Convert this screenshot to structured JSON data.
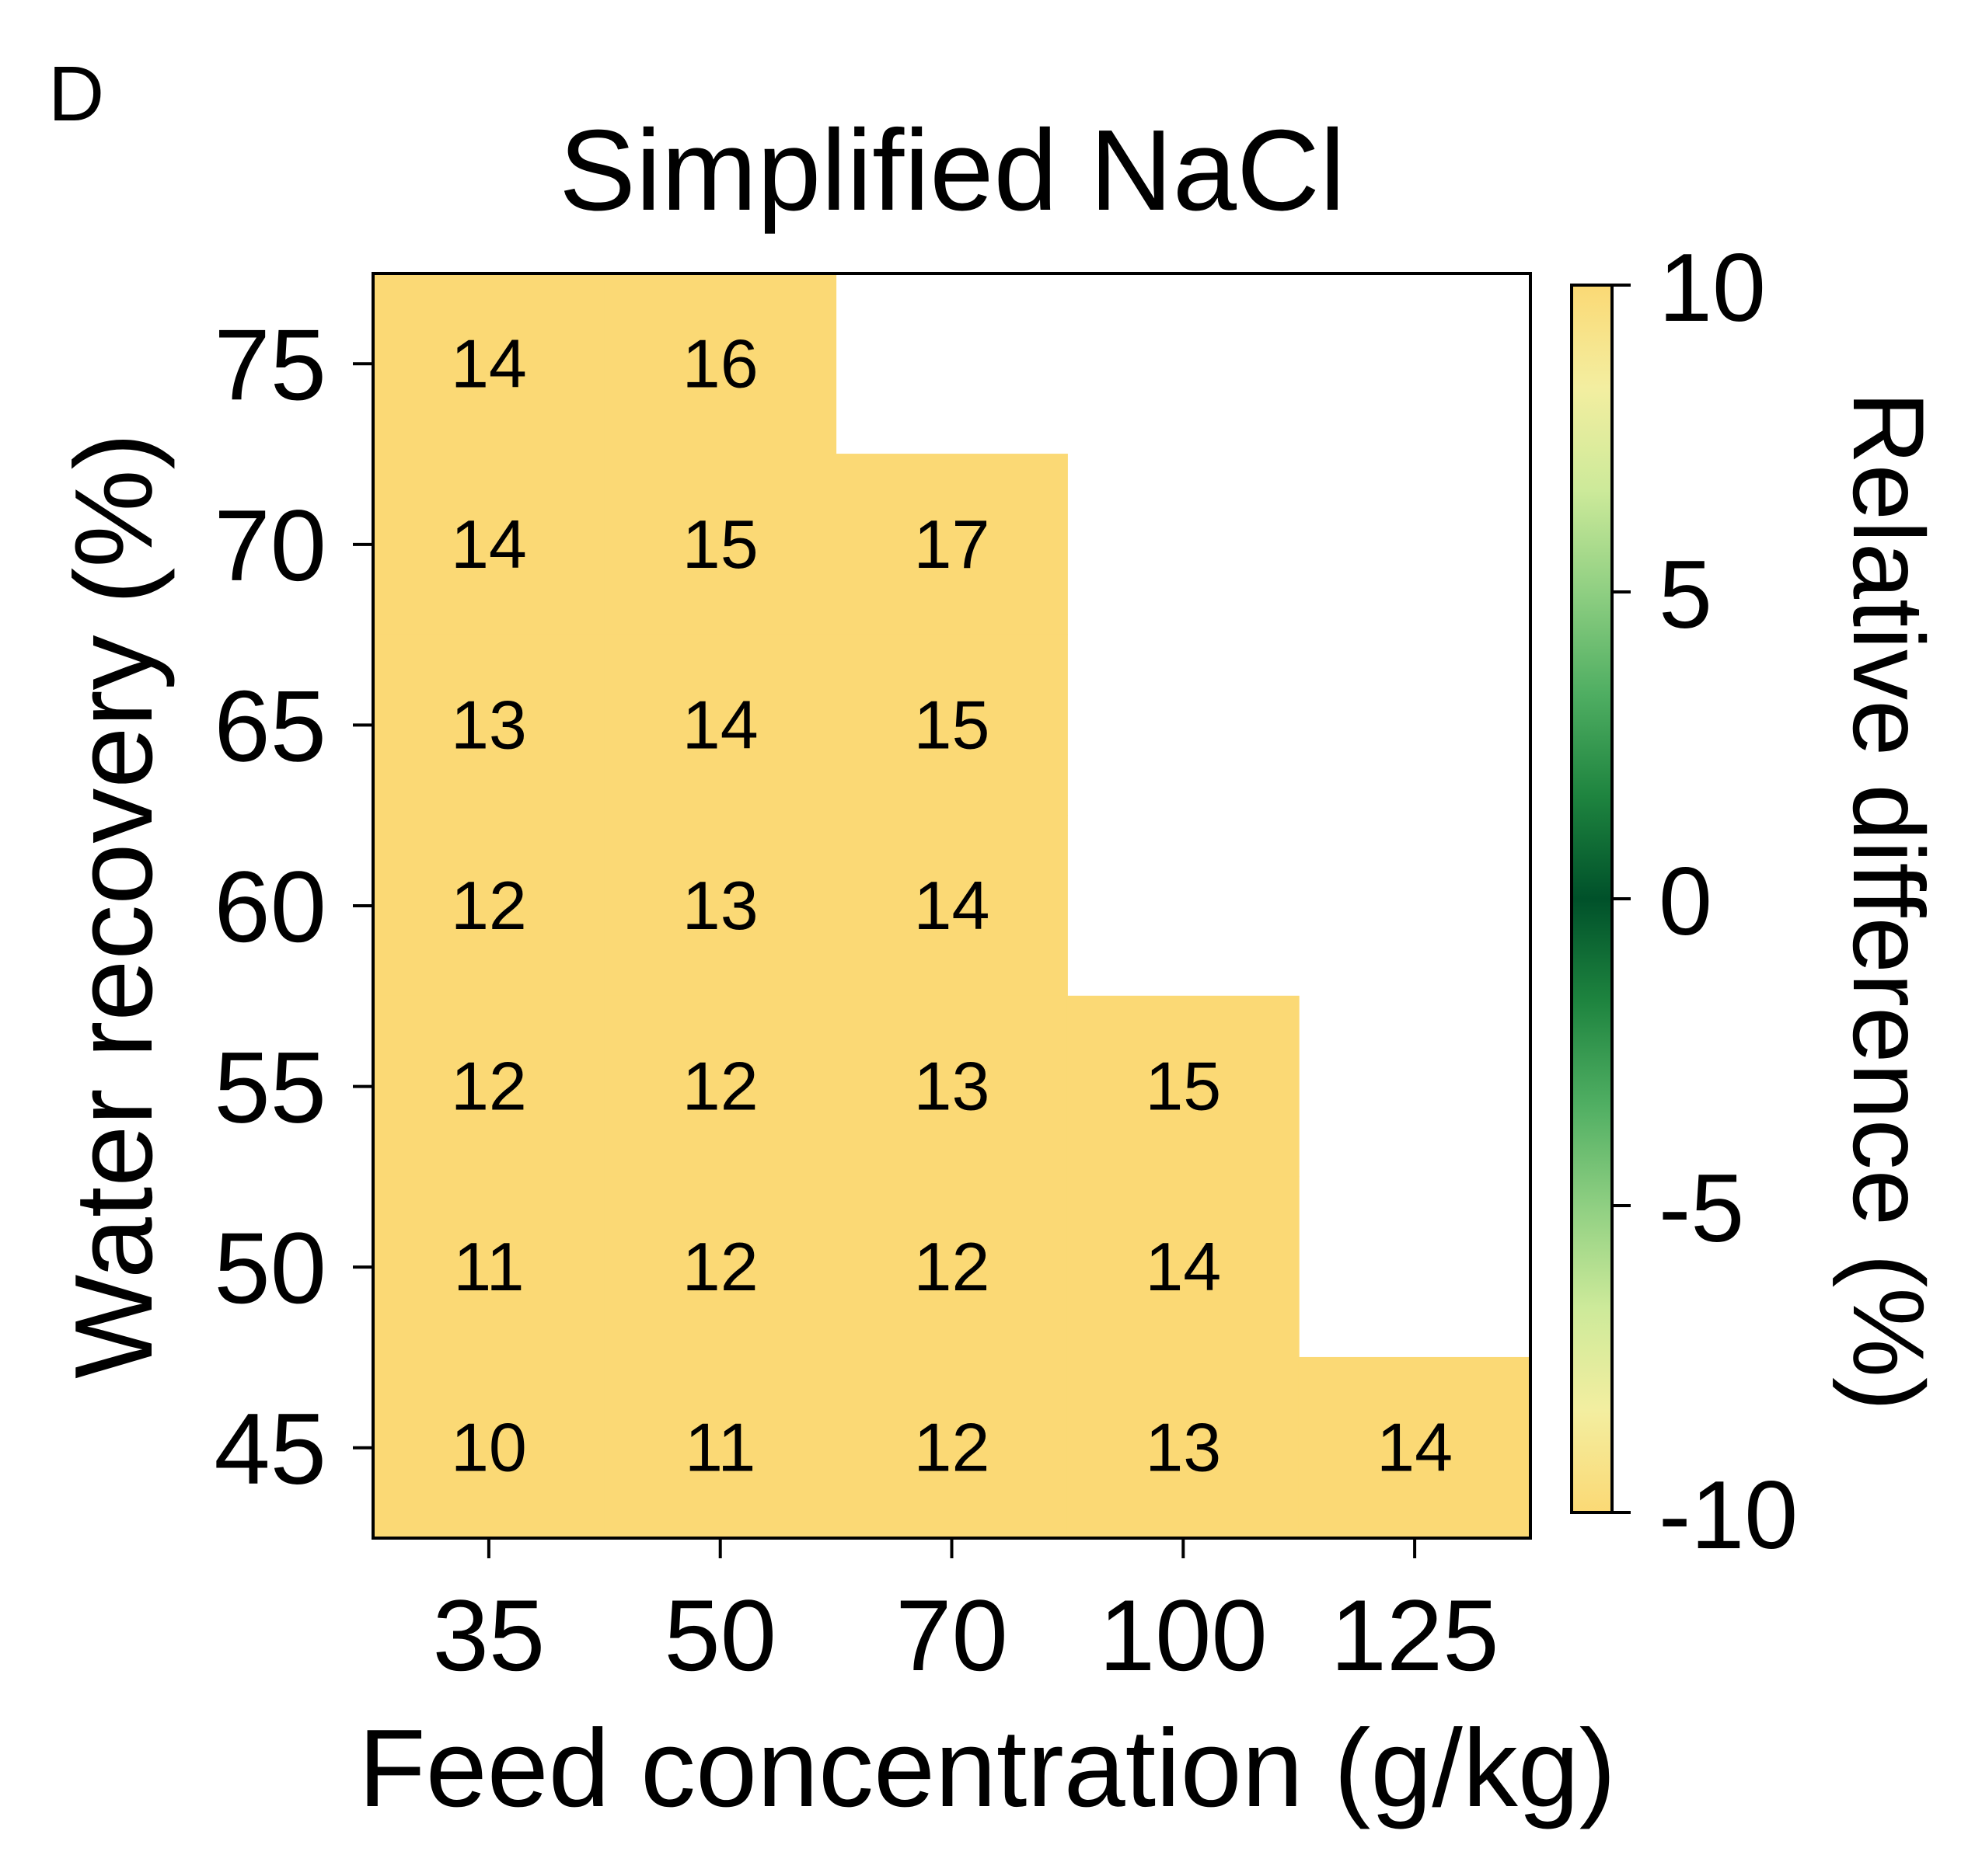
{
  "panel_label": "D",
  "chart_data": {
    "type": "heatmap",
    "title": "Simplified NaCl",
    "xlabel": "Feed concentration (g/kg)",
    "ylabel": "Water recovery (%)",
    "x_categories": [
      "35",
      "50",
      "70",
      "100",
      "125"
    ],
    "y_categories": [
      "45",
      "50",
      "55",
      "60",
      "65",
      "70",
      "75"
    ],
    "cells": [
      {
        "x": "35",
        "y": "75",
        "value": 14
      },
      {
        "x": "50",
        "y": "75",
        "value": 16
      },
      {
        "x": "35",
        "y": "70",
        "value": 14
      },
      {
        "x": "50",
        "y": "70",
        "value": 15
      },
      {
        "x": "70",
        "y": "70",
        "value": 17
      },
      {
        "x": "35",
        "y": "65",
        "value": 13
      },
      {
        "x": "50",
        "y": "65",
        "value": 14
      },
      {
        "x": "70",
        "y": "65",
        "value": 15
      },
      {
        "x": "35",
        "y": "60",
        "value": 12
      },
      {
        "x": "50",
        "y": "60",
        "value": 13
      },
      {
        "x": "70",
        "y": "60",
        "value": 14
      },
      {
        "x": "35",
        "y": "55",
        "value": 12
      },
      {
        "x": "50",
        "y": "55",
        "value": 12
      },
      {
        "x": "70",
        "y": "55",
        "value": 13
      },
      {
        "x": "100",
        "y": "55",
        "value": 15
      },
      {
        "x": "35",
        "y": "50",
        "value": 11
      },
      {
        "x": "50",
        "y": "50",
        "value": 12
      },
      {
        "x": "70",
        "y": "50",
        "value": 12
      },
      {
        "x": "100",
        "y": "50",
        "value": 14
      },
      {
        "x": "35",
        "y": "45",
        "value": 10
      },
      {
        "x": "50",
        "y": "45",
        "value": 11
      },
      {
        "x": "70",
        "y": "45",
        "value": 12
      },
      {
        "x": "100",
        "y": "45",
        "value": 13
      },
      {
        "x": "125",
        "y": "45",
        "value": 14
      }
    ],
    "colorbar": {
      "label": "Relative difference (%)",
      "range": [
        -10,
        10
      ],
      "ticks": [
        "10",
        "5",
        "0",
        "-5",
        "-10"
      ],
      "colormap": [
        "#fbd975",
        "#f3eea0",
        "#cdea9a",
        "#8fcf82",
        "#4fae62",
        "#1e843f",
        "#00512a",
        "#1e843f",
        "#4fae62",
        "#8fcf82",
        "#cdea9a",
        "#f3eea0",
        "#fbd975"
      ]
    },
    "colors": {
      "cell_fill": "#fbd975"
    }
  }
}
